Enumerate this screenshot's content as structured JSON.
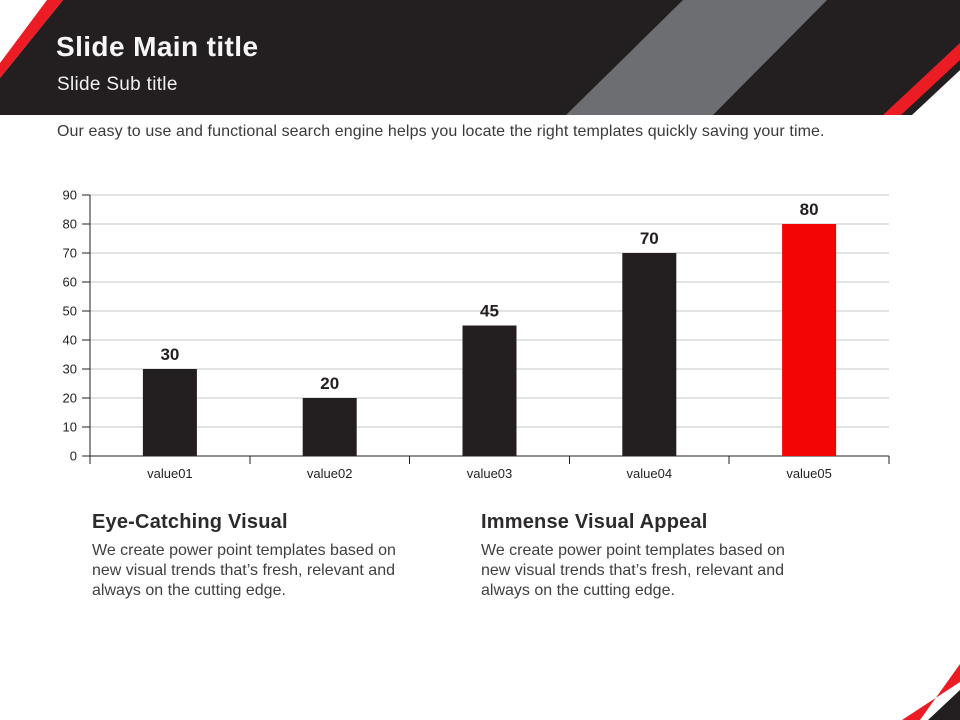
{
  "slide_title": {
    "main": "Slide Main title",
    "sub": "Slide Sub title"
  },
  "description": "Our easy to use and functional search engine helps you locate the right templates quickly saving your time.",
  "features": [
    {
      "title": "Eye-Catching Visual",
      "body_lines": [
        "We create power point templates based on",
        "new visual trends that’s fresh, relevant and",
        "always on the cutting edge."
      ]
    },
    {
      "title": "Immense Visual Appeal",
      "body_lines": [
        "We create power point templates based on",
        "new visual trends that’s fresh, relevant and",
        "always on the cutting edge."
      ]
    }
  ],
  "colors": {
    "dark": "#231F20",
    "red": "#EC1C24",
    "bar_red": "#F40505",
    "gray": "#6D6E71",
    "grid": "#C6C7C8",
    "axis": "#231F20",
    "label": "#231F20",
    "body_text": "#413E3F"
  },
  "chart_data": {
    "type": "bar",
    "title": "",
    "xlabel": "",
    "ylabel": "",
    "categories": [
      "value01",
      "value02",
      "value03",
      "value04",
      "value05"
    ],
    "values": [
      30,
      20,
      45,
      70,
      80
    ],
    "bar_colors": [
      "#231F20",
      "#231F20",
      "#231F20",
      "#231F20",
      "#F40505"
    ],
    "data_labels": [
      "30",
      "20",
      "45",
      "70",
      "80"
    ],
    "ylim": [
      0,
      90
    ],
    "yticks": [
      0,
      10,
      20,
      30,
      40,
      50,
      60,
      70,
      80,
      90
    ],
    "grid": true,
    "legend_position": "none"
  }
}
